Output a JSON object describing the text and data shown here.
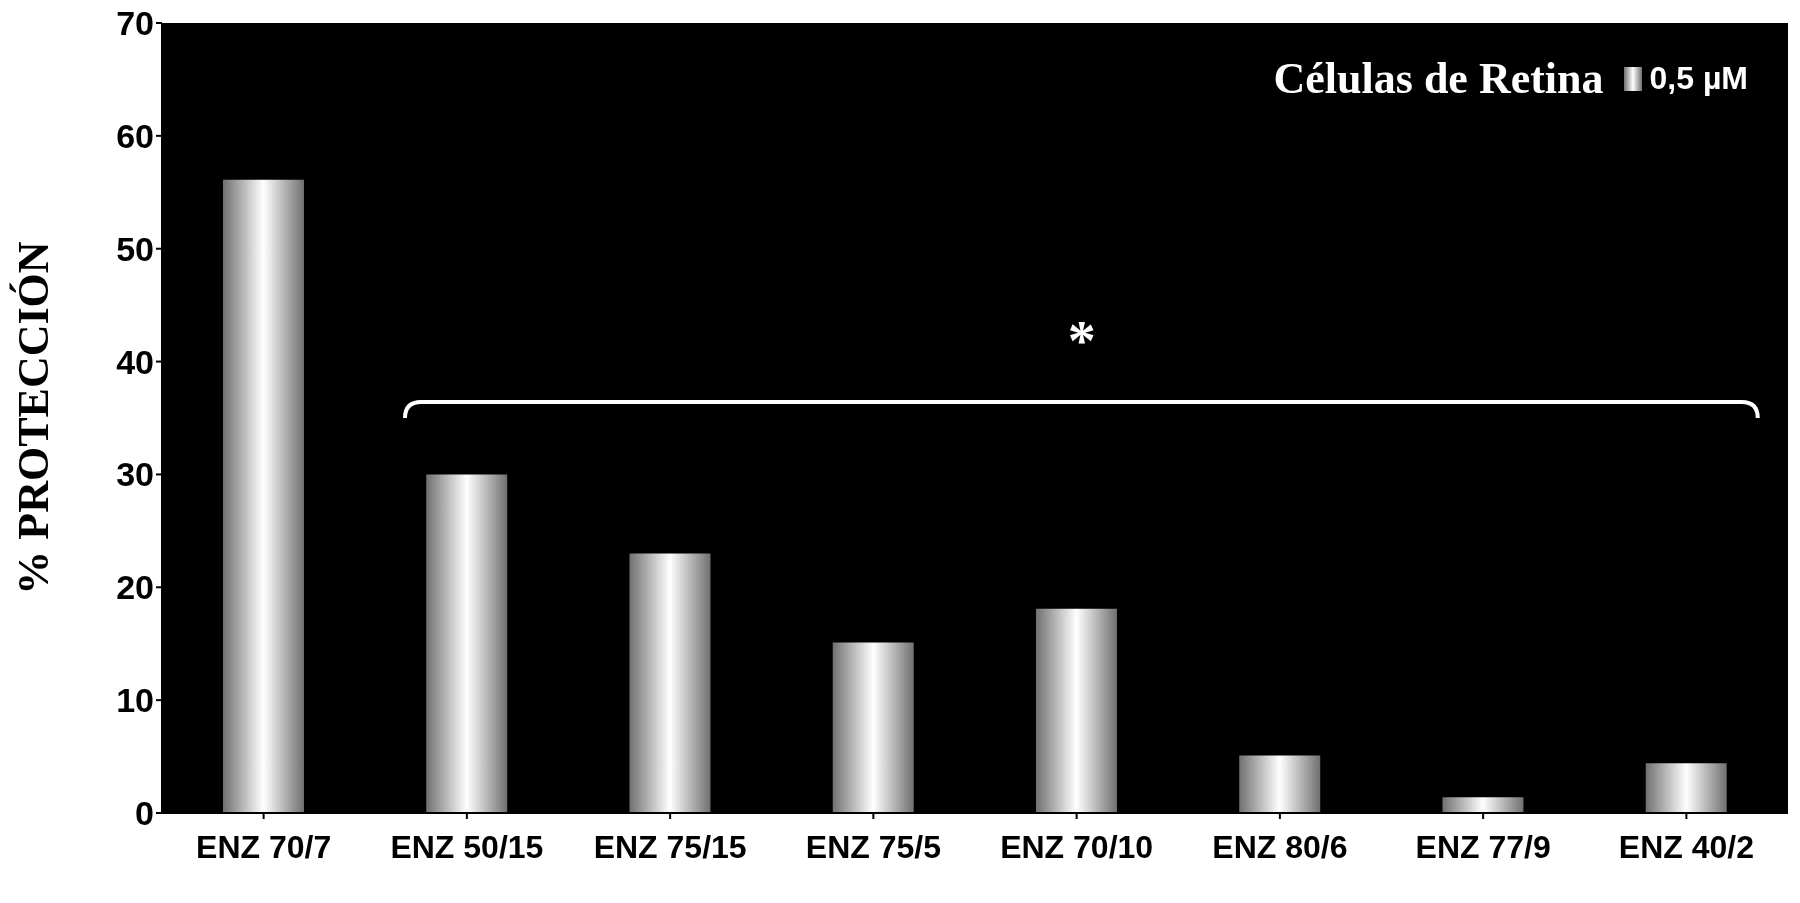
{
  "chart_data": {
    "type": "bar",
    "ylabel": "% PROTECCIÓN",
    "legend_title": "Células de Retina",
    "categories": [
      "ENZ 70/7",
      "ENZ 50/15",
      "ENZ 75/15",
      "ENZ 75/5",
      "ENZ 70/10",
      "ENZ 80/6",
      "ENZ 77/9",
      "ENZ 40/2"
    ],
    "series": [
      {
        "name": "0,5 µM",
        "color": "#707070",
        "values": [
          56.1,
          30.0,
          23.0,
          15.1,
          18.1,
          5.1,
          1.4,
          4.4
        ]
      }
    ],
    "ylim": [
      0,
      70
    ],
    "yticks": [
      0,
      10,
      20,
      30,
      40,
      50,
      60,
      70
    ],
    "grid": false,
    "legend": "top right",
    "annotations": [
      "*"
    ]
  }
}
